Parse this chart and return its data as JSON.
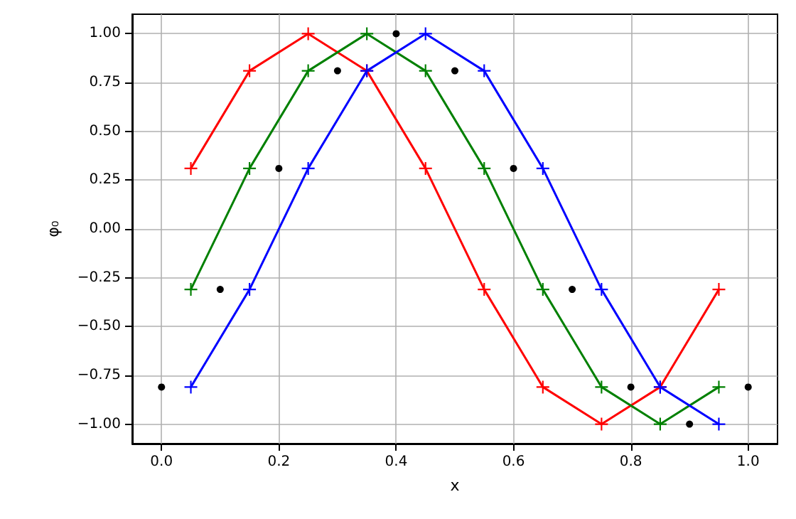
{
  "chart_data": {
    "type": "line",
    "xlabel": "x",
    "ylabel": "φ₀",
    "grid": true,
    "xlim": [
      -0.05,
      1.05
    ],
    "ylim": [
      -1.1,
      1.1
    ],
    "xticks": [
      {
        "value": 0,
        "label": "0.0"
      },
      {
        "value": 0.2,
        "label": "0.2"
      },
      {
        "value": 0.4,
        "label": "0.4"
      },
      {
        "value": 0.6,
        "label": "0.6"
      },
      {
        "value": 0.8,
        "label": "0.8"
      },
      {
        "value": 1,
        "label": "1.0"
      }
    ],
    "yticks": [
      {
        "value": -1,
        "label": "−1.00"
      },
      {
        "value": -0.75,
        "label": "−0.75"
      },
      {
        "value": -0.5,
        "label": "−0.50"
      },
      {
        "value": -0.25,
        "label": "−0.25"
      },
      {
        "value": 0,
        "label": "0.00"
      },
      {
        "value": 0.25,
        "label": "0.25"
      },
      {
        "value": 0.5,
        "label": "0.50"
      },
      {
        "value": 0.75,
        "label": "0.75"
      },
      {
        "value": 1,
        "label": "1.00"
      }
    ],
    "series": [
      {
        "type": "scatter",
        "marker": "circle",
        "color": "#000000",
        "x": [
          0,
          0.1,
          0.2,
          0.3,
          0.4,
          0.5,
          0.6,
          0.7,
          0.8,
          0.9,
          1.0
        ],
        "values": [
          -0.81,
          -0.31,
          0.31,
          0.81,
          1.0,
          0.81,
          0.31,
          -0.31,
          -0.81,
          -1.0,
          -0.81
        ]
      },
      {
        "marker": "cross",
        "color": "#ff0000",
        "x": [
          0.05,
          0.15,
          0.25,
          0.35,
          0.45,
          0.55,
          0.65,
          0.75,
          0.85,
          0.95
        ],
        "values": [
          0.31,
          0.81,
          1.0,
          0.81,
          0.31,
          -0.31,
          -0.81,
          -1.0,
          -0.81,
          -0.31
        ]
      },
      {
        "marker": "cross",
        "color": "#008000",
        "x": [
          0.05,
          0.15,
          0.25,
          0.35,
          0.45,
          0.55,
          0.65,
          0.75,
          0.85,
          0.95
        ],
        "values": [
          -0.31,
          0.31,
          0.81,
          1.0,
          0.81,
          0.31,
          -0.31,
          -0.81,
          -1.0,
          -0.81
        ]
      },
      {
        "marker": "cross",
        "color": "#0000ff",
        "x": [
          0.05,
          0.15,
          0.25,
          0.35,
          0.45,
          0.55,
          0.65,
          0.75,
          0.85,
          0.95
        ],
        "values": [
          -0.81,
          -0.31,
          0.31,
          0.81,
          1.0,
          0.81,
          0.31,
          -0.31,
          -0.81,
          -1.0
        ]
      }
    ]
  }
}
